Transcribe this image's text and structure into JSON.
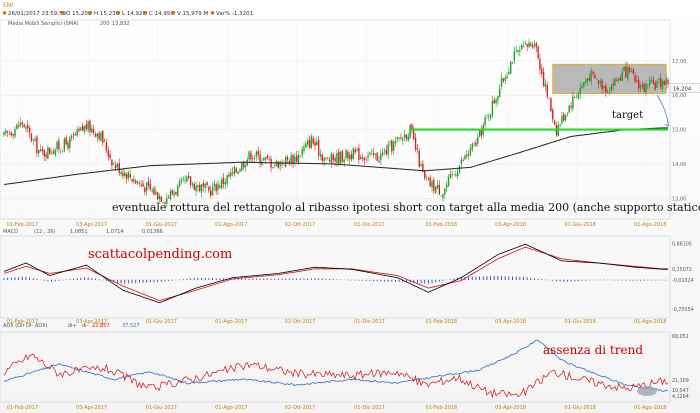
{
  "header": {
    "symbol": "ENI",
    "date_time": "26/01/2017 23:59:59",
    "open": "O 15,200",
    "high": "H 15,230",
    "low": "L 14,920",
    "close": "C 14,950",
    "volume": "V 15,979 M",
    "change": "Var% -1,3201",
    "indicator_label": "Media Mobili Semplici (SMA)",
    "indicator_period": "200",
    "indicator_value": "13,832"
  },
  "annotations": {
    "main": "eventuale rottura del rettangolo al ribasso ipotesi short con target alla media 200 (anche supporto statico)",
    "target": "target",
    "site": "scattacolpending.com",
    "trend": "assenza di trend"
  },
  "colors": {
    "candle_up": "#1aa12a",
    "candle_down": "#d62020",
    "sma": "#222222",
    "support": "#22dd22",
    "rect_fill": "#b9b9b9",
    "rect_border": "#e8b020",
    "macd_line": "#000000",
    "signal_line": "#cc1111",
    "histogram": "#3344aa",
    "adx": "#3366cc",
    "di_plus": "#cc1111",
    "di_minus": "#3366cc",
    "date_label": "#c08000",
    "price_tag": "#ffffff"
  },
  "chart_data": [
    {
      "type": "candlestick",
      "x_ticks": [
        "01-Feb-2017",
        "03-Apr-2017",
        "01-Giu-2017",
        "01-Ago-2017",
        "02-Ott-2017",
        "01-Dic-2017",
        "01-Feb-2018",
        "03-Apr-2018",
        "01-Giu-2018",
        "01-Ago-2018"
      ],
      "y_ticks": [
        "13,00",
        "14,00",
        "15,00",
        "16,00",
        "17,00"
      ],
      "ylim": [
        12.6,
        17.9
      ],
      "last_price": "16,204",
      "close_anchors": [
        [
          0,
          14.8
        ],
        [
          10,
          15.2
        ],
        [
          20,
          14.3
        ],
        [
          35,
          14.6
        ],
        [
          45,
          15.1
        ],
        [
          52,
          14.9
        ],
        [
          60,
          14.0
        ],
        [
          75,
          13.4
        ],
        [
          88,
          13.0
        ],
        [
          100,
          13.5
        ],
        [
          112,
          13.2
        ],
        [
          125,
          13.7
        ],
        [
          135,
          14.3
        ],
        [
          148,
          14.0
        ],
        [
          160,
          14.2
        ],
        [
          168,
          14.7
        ],
        [
          176,
          14.1
        ],
        [
          190,
          14.3
        ],
        [
          205,
          14.2
        ],
        [
          216,
          14.7
        ],
        [
          222,
          15.0
        ],
        [
          230,
          13.5
        ],
        [
          240,
          13.2
        ],
        [
          248,
          13.9
        ],
        [
          258,
          14.6
        ],
        [
          266,
          15.6
        ],
        [
          278,
          17.1
        ],
        [
          290,
          17.6
        ],
        [
          296,
          16.2
        ],
        [
          302,
          15.0
        ],
        [
          310,
          15.8
        ],
        [
          320,
          16.6
        ],
        [
          330,
          16.2
        ],
        [
          340,
          16.7
        ],
        [
          350,
          16.2
        ],
        [
          360,
          16.4
        ]
      ],
      "sma_anchors": [
        [
          0,
          13.4
        ],
        [
          40,
          13.7
        ],
        [
          80,
          13.95
        ],
        [
          130,
          14.05
        ],
        [
          180,
          14.0
        ],
        [
          230,
          13.8
        ],
        [
          255,
          13.9
        ],
        [
          280,
          14.3
        ],
        [
          310,
          14.8
        ],
        [
          340,
          15.0
        ],
        [
          360,
          15.05
        ]
      ],
      "support_level": 15.0,
      "rectangle": {
        "from_bar": 300,
        "to_bar": 362,
        "low": 16.05,
        "high": 16.9
      },
      "projection": {
        "from_bar": 357,
        "to_bar": 360,
        "from_price": 16.0,
        "to_price": 15.1
      }
    },
    {
      "type": "line",
      "title": "MACD",
      "params": "(12 , 26)",
      "macd_value": "1,0851",
      "signal_value": "1,0714",
      "hist_value": "0,01366",
      "y_ticks": [
        "0,86105",
        "0,25072",
        "-0,01024",
        "-0,70354"
      ],
      "ylim": [
        -0.82,
        0.95
      ],
      "series": [
        {
          "name": "MACD",
          "anchors": [
            [
              0,
              0.2
            ],
            [
              12,
              0.4
            ],
            [
              25,
              0.1
            ],
            [
              45,
              0.35
            ],
            [
              65,
              -0.25
            ],
            [
              85,
              -0.55
            ],
            [
              105,
              -0.2
            ],
            [
              125,
              0.05
            ],
            [
              150,
              0.15
            ],
            [
              170,
              0.3
            ],
            [
              190,
              0.25
            ],
            [
              215,
              0.05
            ],
            [
              232,
              -0.3
            ],
            [
              250,
              0.05
            ],
            [
              270,
              0.6
            ],
            [
              285,
              0.85
            ],
            [
              305,
              0.45
            ],
            [
              325,
              0.4
            ],
            [
              345,
              0.3
            ],
            [
              360,
              0.25
            ]
          ]
        },
        {
          "name": "Signal",
          "anchors": [
            [
              0,
              0.15
            ],
            [
              12,
              0.32
            ],
            [
              25,
              0.15
            ],
            [
              45,
              0.28
            ],
            [
              65,
              -0.15
            ],
            [
              85,
              -0.5
            ],
            [
              105,
              -0.25
            ],
            [
              125,
              0.02
            ],
            [
              150,
              0.12
            ],
            [
              170,
              0.26
            ],
            [
              190,
              0.26
            ],
            [
              215,
              0.1
            ],
            [
              232,
              -0.2
            ],
            [
              250,
              -0.02
            ],
            [
              270,
              0.5
            ],
            [
              285,
              0.78
            ],
            [
              305,
              0.5
            ],
            [
              325,
              0.4
            ],
            [
              345,
              0.32
            ],
            [
              360,
              0.26
            ]
          ]
        }
      ]
    },
    {
      "type": "line",
      "title": "ADX (Dir DI- ADX)",
      "di_plus_label": "di+",
      "di_plus_value": "22,857",
      "di_minus_label": "di-",
      "di_minus_value": "37,527",
      "y_ticks": [
        "68,051",
        "21,109",
        "10,547",
        "4,1264"
      ],
      "ylim": [
        0,
        70
      ],
      "series": [
        {
          "name": "ADX",
          "anchors": [
            [
              0,
              20
            ],
            [
              30,
              38
            ],
            [
              60,
              22
            ],
            [
              80,
              30
            ],
            [
              100,
              18
            ],
            [
              130,
              22
            ],
            [
              160,
              16
            ],
            [
              190,
              22
            ],
            [
              215,
              18
            ],
            [
              240,
              26
            ],
            [
              260,
              32
            ],
            [
              280,
              50
            ],
            [
              292,
              64
            ],
            [
              305,
              42
            ],
            [
              320,
              30
            ],
            [
              340,
              16
            ],
            [
              360,
              10
            ]
          ]
        },
        {
          "name": "DI+",
          "anchors": [
            [
              0,
              30
            ],
            [
              15,
              48
            ],
            [
              30,
              28
            ],
            [
              55,
              34
            ],
            [
              80,
              12
            ],
            [
              110,
              26
            ],
            [
              135,
              38
            ],
            [
              160,
              28
            ],
            [
              190,
              26
            ],
            [
              215,
              30
            ],
            [
              230,
              16
            ],
            [
              248,
              24
            ],
            [
              265,
              8
            ],
            [
              282,
              5
            ],
            [
              300,
              30
            ],
            [
              320,
              20
            ],
            [
              340,
              12
            ],
            [
              360,
              20
            ]
          ]
        }
      ]
    }
  ]
}
